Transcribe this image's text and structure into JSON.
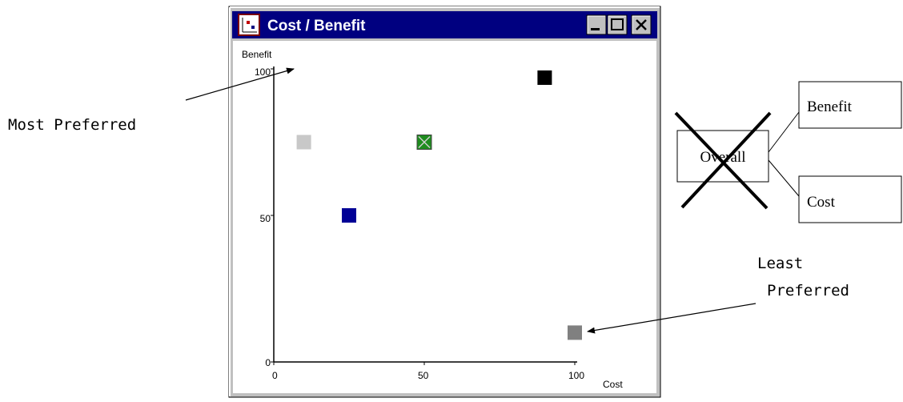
{
  "window": {
    "title": "Cost / Benefit",
    "controls": {
      "minimize": "_",
      "maximize": "□",
      "close": "×"
    },
    "icon": "chart-window-icon"
  },
  "chart_data": {
    "type": "scatter",
    "xlabel": "Cost",
    "ylabel": "Benefit",
    "xlim": [
      0,
      100
    ],
    "ylim": [
      0,
      100
    ],
    "x_ticks": [
      "0",
      "50",
      "100"
    ],
    "y_ticks": [
      "0",
      "50",
      "100"
    ],
    "grid": false,
    "points": [
      {
        "x": 10,
        "y": 75,
        "color": "#c8c8c8"
      },
      {
        "x": 50,
        "y": 75,
        "color": "#1e8c1e",
        "marked": true
      },
      {
        "x": 25,
        "y": 50,
        "color": "#000096"
      },
      {
        "x": 90,
        "y": 97,
        "color": "#000000"
      },
      {
        "x": 100,
        "y": 10,
        "color": "#808080"
      }
    ]
  },
  "annotations": {
    "most_preferred": "Most Preferred",
    "least_preferred": [
      "Least",
      "Preferred"
    ]
  },
  "tree": {
    "root": "Overall",
    "children": [
      "Benefit",
      "Cost"
    ],
    "root_crossed_out": true
  }
}
